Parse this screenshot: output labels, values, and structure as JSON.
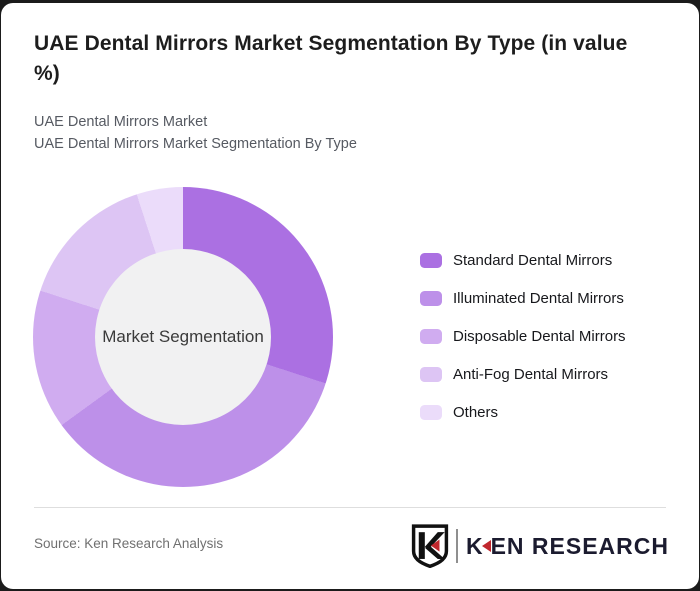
{
  "frame": {
    "background_color": "#1b1b1b",
    "card_background_color": "#ffffff"
  },
  "header": {
    "title": "UAE Dental Mirrors Market Segmentation By Type (in value %)",
    "subtitle_line1": "UAE Dental Mirrors Market",
    "subtitle_line2": "UAE Dental Mirrors Market Segmentation By Type"
  },
  "chart_data": {
    "type": "pie",
    "style": "donut",
    "title": "UAE Dental Mirrors Market Segmentation By Type (in value %)",
    "unit": "value %",
    "center_label": "Market Segmentation",
    "start_angle_deg": 0,
    "direction": "clockwise",
    "legend_position": "right",
    "hole_color": "#f1f1f2",
    "series": [
      {
        "name": "Standard Dental Mirrors",
        "value": 30,
        "color": "#ab70e2"
      },
      {
        "name": "Illuminated Dental Mirrors",
        "value": 35,
        "color": "#bd90e9"
      },
      {
        "name": "Disposable Dental Mirrors",
        "value": 15,
        "color": "#d0acf0"
      },
      {
        "name": "Anti-Fog Dental Mirrors",
        "value": 15,
        "color": "#ddc5f4"
      },
      {
        "name": "Others",
        "value": 5,
        "color": "#ebdcfa"
      }
    ]
  },
  "footer": {
    "source": "Source: Ken Research Analysis",
    "logo_brand_k": "K",
    "logo_brand_rest": "EN RESEARCH"
  }
}
